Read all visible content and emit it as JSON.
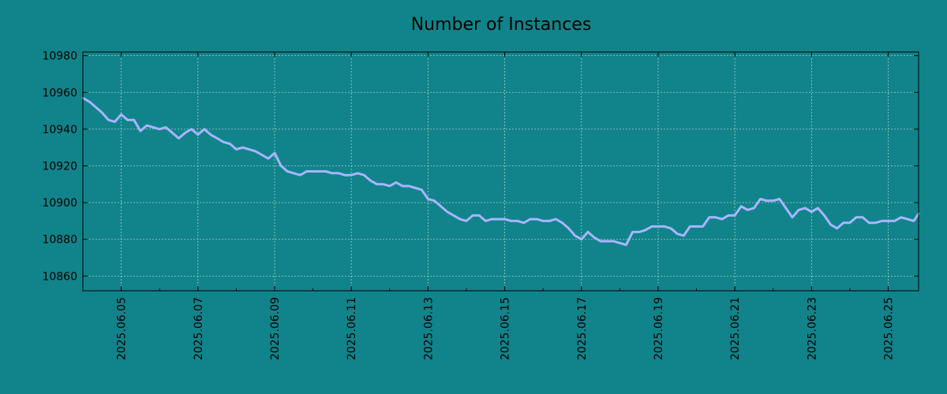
{
  "chart_data": {
    "type": "line",
    "title": "Number of Instances",
    "xlabel": "",
    "ylabel": "",
    "ylim": [
      10852,
      10982
    ],
    "xlim": [
      "2025-06-04 00:00",
      "2025-06-25 19:00"
    ],
    "grid": true,
    "legend": "none",
    "x_tick_labels": [
      "2025.06.05",
      "2025.06.07",
      "2025.06.09",
      "2025.06.11",
      "2025.06.13",
      "2025.06.15",
      "2025.06.17",
      "2025.06.19",
      "2025.06.21",
      "2025.06.23",
      "2025.06.25"
    ],
    "y_tick_labels": [
      "10860",
      "10880",
      "10900",
      "10920",
      "10940",
      "10960",
      "10980"
    ],
    "colors": {
      "background": "#10848a",
      "line": "#a9b4ff"
    },
    "series": [
      {
        "x": [
          "2025-06-04 00:00",
          "2025-06-04 04:00",
          "2025-06-04 08:00",
          "2025-06-04 12:00",
          "2025-06-04 16:00",
          "2025-06-04 20:00",
          "2025-06-05 00:00",
          "2025-06-05 04:00",
          "2025-06-05 08:00",
          "2025-06-05 12:00",
          "2025-06-05 16:00",
          "2025-06-05 20:00",
          "2025-06-06 00:00",
          "2025-06-06 04:00",
          "2025-06-06 08:00",
          "2025-06-06 12:00",
          "2025-06-06 16:00",
          "2025-06-06 20:00",
          "2025-06-07 00:00",
          "2025-06-07 04:00",
          "2025-06-07 08:00",
          "2025-06-07 12:00",
          "2025-06-07 16:00",
          "2025-06-07 20:00",
          "2025-06-08 00:00",
          "2025-06-08 04:00",
          "2025-06-08 08:00",
          "2025-06-08 12:00",
          "2025-06-08 16:00",
          "2025-06-08 20:00",
          "2025-06-09 00:00",
          "2025-06-09 04:00",
          "2025-06-09 08:00",
          "2025-06-09 12:00",
          "2025-06-09 16:00",
          "2025-06-09 20:00",
          "2025-06-10 00:00",
          "2025-06-10 04:00",
          "2025-06-10 08:00",
          "2025-06-10 12:00",
          "2025-06-10 16:00",
          "2025-06-10 20:00",
          "2025-06-11 00:00",
          "2025-06-11 04:00",
          "2025-06-11 08:00",
          "2025-06-11 12:00",
          "2025-06-11 16:00",
          "2025-06-11 20:00",
          "2025-06-12 00:00",
          "2025-06-12 04:00",
          "2025-06-12 08:00",
          "2025-06-12 12:00",
          "2025-06-12 16:00",
          "2025-06-12 20:00",
          "2025-06-13 00:00",
          "2025-06-13 04:00",
          "2025-06-13 08:00",
          "2025-06-13 12:00",
          "2025-06-13 16:00",
          "2025-06-13 20:00",
          "2025-06-14 00:00",
          "2025-06-14 04:00",
          "2025-06-14 08:00",
          "2025-06-14 12:00",
          "2025-06-14 16:00",
          "2025-06-14 20:00",
          "2025-06-15 00:00",
          "2025-06-15 04:00",
          "2025-06-15 08:00",
          "2025-06-15 12:00",
          "2025-06-15 16:00",
          "2025-06-15 20:00",
          "2025-06-16 00:00",
          "2025-06-16 04:00",
          "2025-06-16 08:00",
          "2025-06-16 12:00",
          "2025-06-16 16:00",
          "2025-06-16 20:00",
          "2025-06-17 00:00",
          "2025-06-17 04:00",
          "2025-06-17 08:00",
          "2025-06-17 12:00",
          "2025-06-17 16:00",
          "2025-06-17 20:00",
          "2025-06-18 00:00",
          "2025-06-18 04:00",
          "2025-06-18 08:00",
          "2025-06-18 12:00",
          "2025-06-18 16:00",
          "2025-06-18 20:00",
          "2025-06-19 00:00",
          "2025-06-19 04:00",
          "2025-06-19 08:00",
          "2025-06-19 12:00",
          "2025-06-19 16:00",
          "2025-06-19 20:00",
          "2025-06-20 00:00",
          "2025-06-20 04:00",
          "2025-06-20 08:00",
          "2025-06-20 12:00",
          "2025-06-20 16:00",
          "2025-06-20 20:00",
          "2025-06-21 00:00",
          "2025-06-21 04:00",
          "2025-06-21 08:00",
          "2025-06-21 12:00",
          "2025-06-21 16:00",
          "2025-06-21 20:00",
          "2025-06-22 00:00",
          "2025-06-22 04:00",
          "2025-06-22 08:00",
          "2025-06-22 12:00",
          "2025-06-22 16:00",
          "2025-06-22 20:00",
          "2025-06-23 00:00",
          "2025-06-23 04:00",
          "2025-06-23 08:00",
          "2025-06-23 12:00",
          "2025-06-23 16:00",
          "2025-06-23 20:00",
          "2025-06-24 00:00",
          "2025-06-24 04:00",
          "2025-06-24 08:00",
          "2025-06-24 12:00",
          "2025-06-24 16:00",
          "2025-06-24 20:00",
          "2025-06-25 00:00",
          "2025-06-25 04:00",
          "2025-06-25 08:00",
          "2025-06-25 12:00",
          "2025-06-25 16:00",
          "2025-06-25 19:00"
        ],
        "y": [
          10957,
          10955,
          10952,
          10949,
          10945,
          10944,
          10948,
          10945,
          10945,
          10939,
          10942,
          10941,
          10940,
          10941,
          10938,
          10935,
          10938,
          10940,
          10937,
          10940,
          10937,
          10935,
          10933,
          10932,
          10929,
          10930,
          10929,
          10928,
          10926,
          10924,
          10927,
          10920,
          10917,
          10916,
          10915,
          10917,
          10917,
          10917,
          10917,
          10916,
          10916,
          10915,
          10915,
          10916,
          10915,
          10912,
          10910,
          10910,
          10909,
          10911,
          10909,
          10909,
          10908,
          10907,
          10902,
          10901,
          10898,
          10895,
          10893,
          10891,
          10890,
          10893,
          10893,
          10890,
          10891,
          10891,
          10891,
          10890,
          10890,
          10889,
          10891,
          10891,
          10890,
          10890,
          10891,
          10889,
          10886,
          10882,
          10880,
          10884,
          10881,
          10879,
          10879,
          10879,
          10878,
          10877,
          10884,
          10884,
          10885,
          10887,
          10887,
          10887,
          10886,
          10883,
          10882,
          10887,
          10887,
          10887,
          10892,
          10892,
          10891,
          10893,
          10893,
          10898,
          10896,
          10897,
          10902,
          10901,
          10901,
          10902,
          10897,
          10892,
          10896,
          10897,
          10895,
          10897,
          10893,
          10888,
          10886,
          10889,
          10889,
          10892,
          10892,
          10889,
          10889,
          10890,
          10890,
          10890,
          10892,
          10891,
          10890,
          10894
        ]
      }
    ]
  }
}
